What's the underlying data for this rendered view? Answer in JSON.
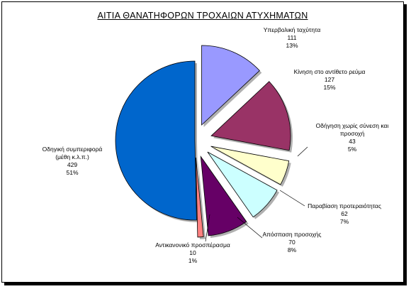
{
  "chart_data": {
    "type": "pie",
    "title": "ΑΙΤΙΑ ΘΑΝΑΤΗΦΟΡΩΝ ΤΡΟΧΑΙΩΝ ΑΤΥΧΗΜΑΤΩΝ",
    "slices": [
      {
        "label": "Υπερβολική ταχύτητα",
        "value": 111,
        "percent": "13%",
        "color": "#9999ff",
        "exploded": true
      },
      {
        "label": "Κίνηση στο αντίθετο ρεύμα",
        "value": 127,
        "percent": "15%",
        "color": "#993366",
        "exploded": true
      },
      {
        "label": "Οδήγηση χωρίς σύνεση και προσοχή",
        "value": 43,
        "percent": "5%",
        "color": "#ffffcc",
        "exploded": true
      },
      {
        "label": "Παραβίαση προτεραιότητας",
        "value": 62,
        "percent": "7%",
        "color": "#ccffff",
        "exploded": true
      },
      {
        "label": "Απόσπαση προσοχής",
        "value": 70,
        "percent": "8%",
        "color": "#660066",
        "exploded": true
      },
      {
        "label": "Αντικανονικό προσπέρασμα",
        "value": 10,
        "percent": "1%",
        "color": "#ff8080",
        "exploded": true
      },
      {
        "label": "Οδηγική συμπεριφορά (μέθη κ.λ.π.)",
        "value": 429,
        "percent": "51%",
        "color": "#0066cc",
        "exploded": false
      }
    ],
    "legend": "none",
    "data_labels": "outside with leader lines"
  }
}
